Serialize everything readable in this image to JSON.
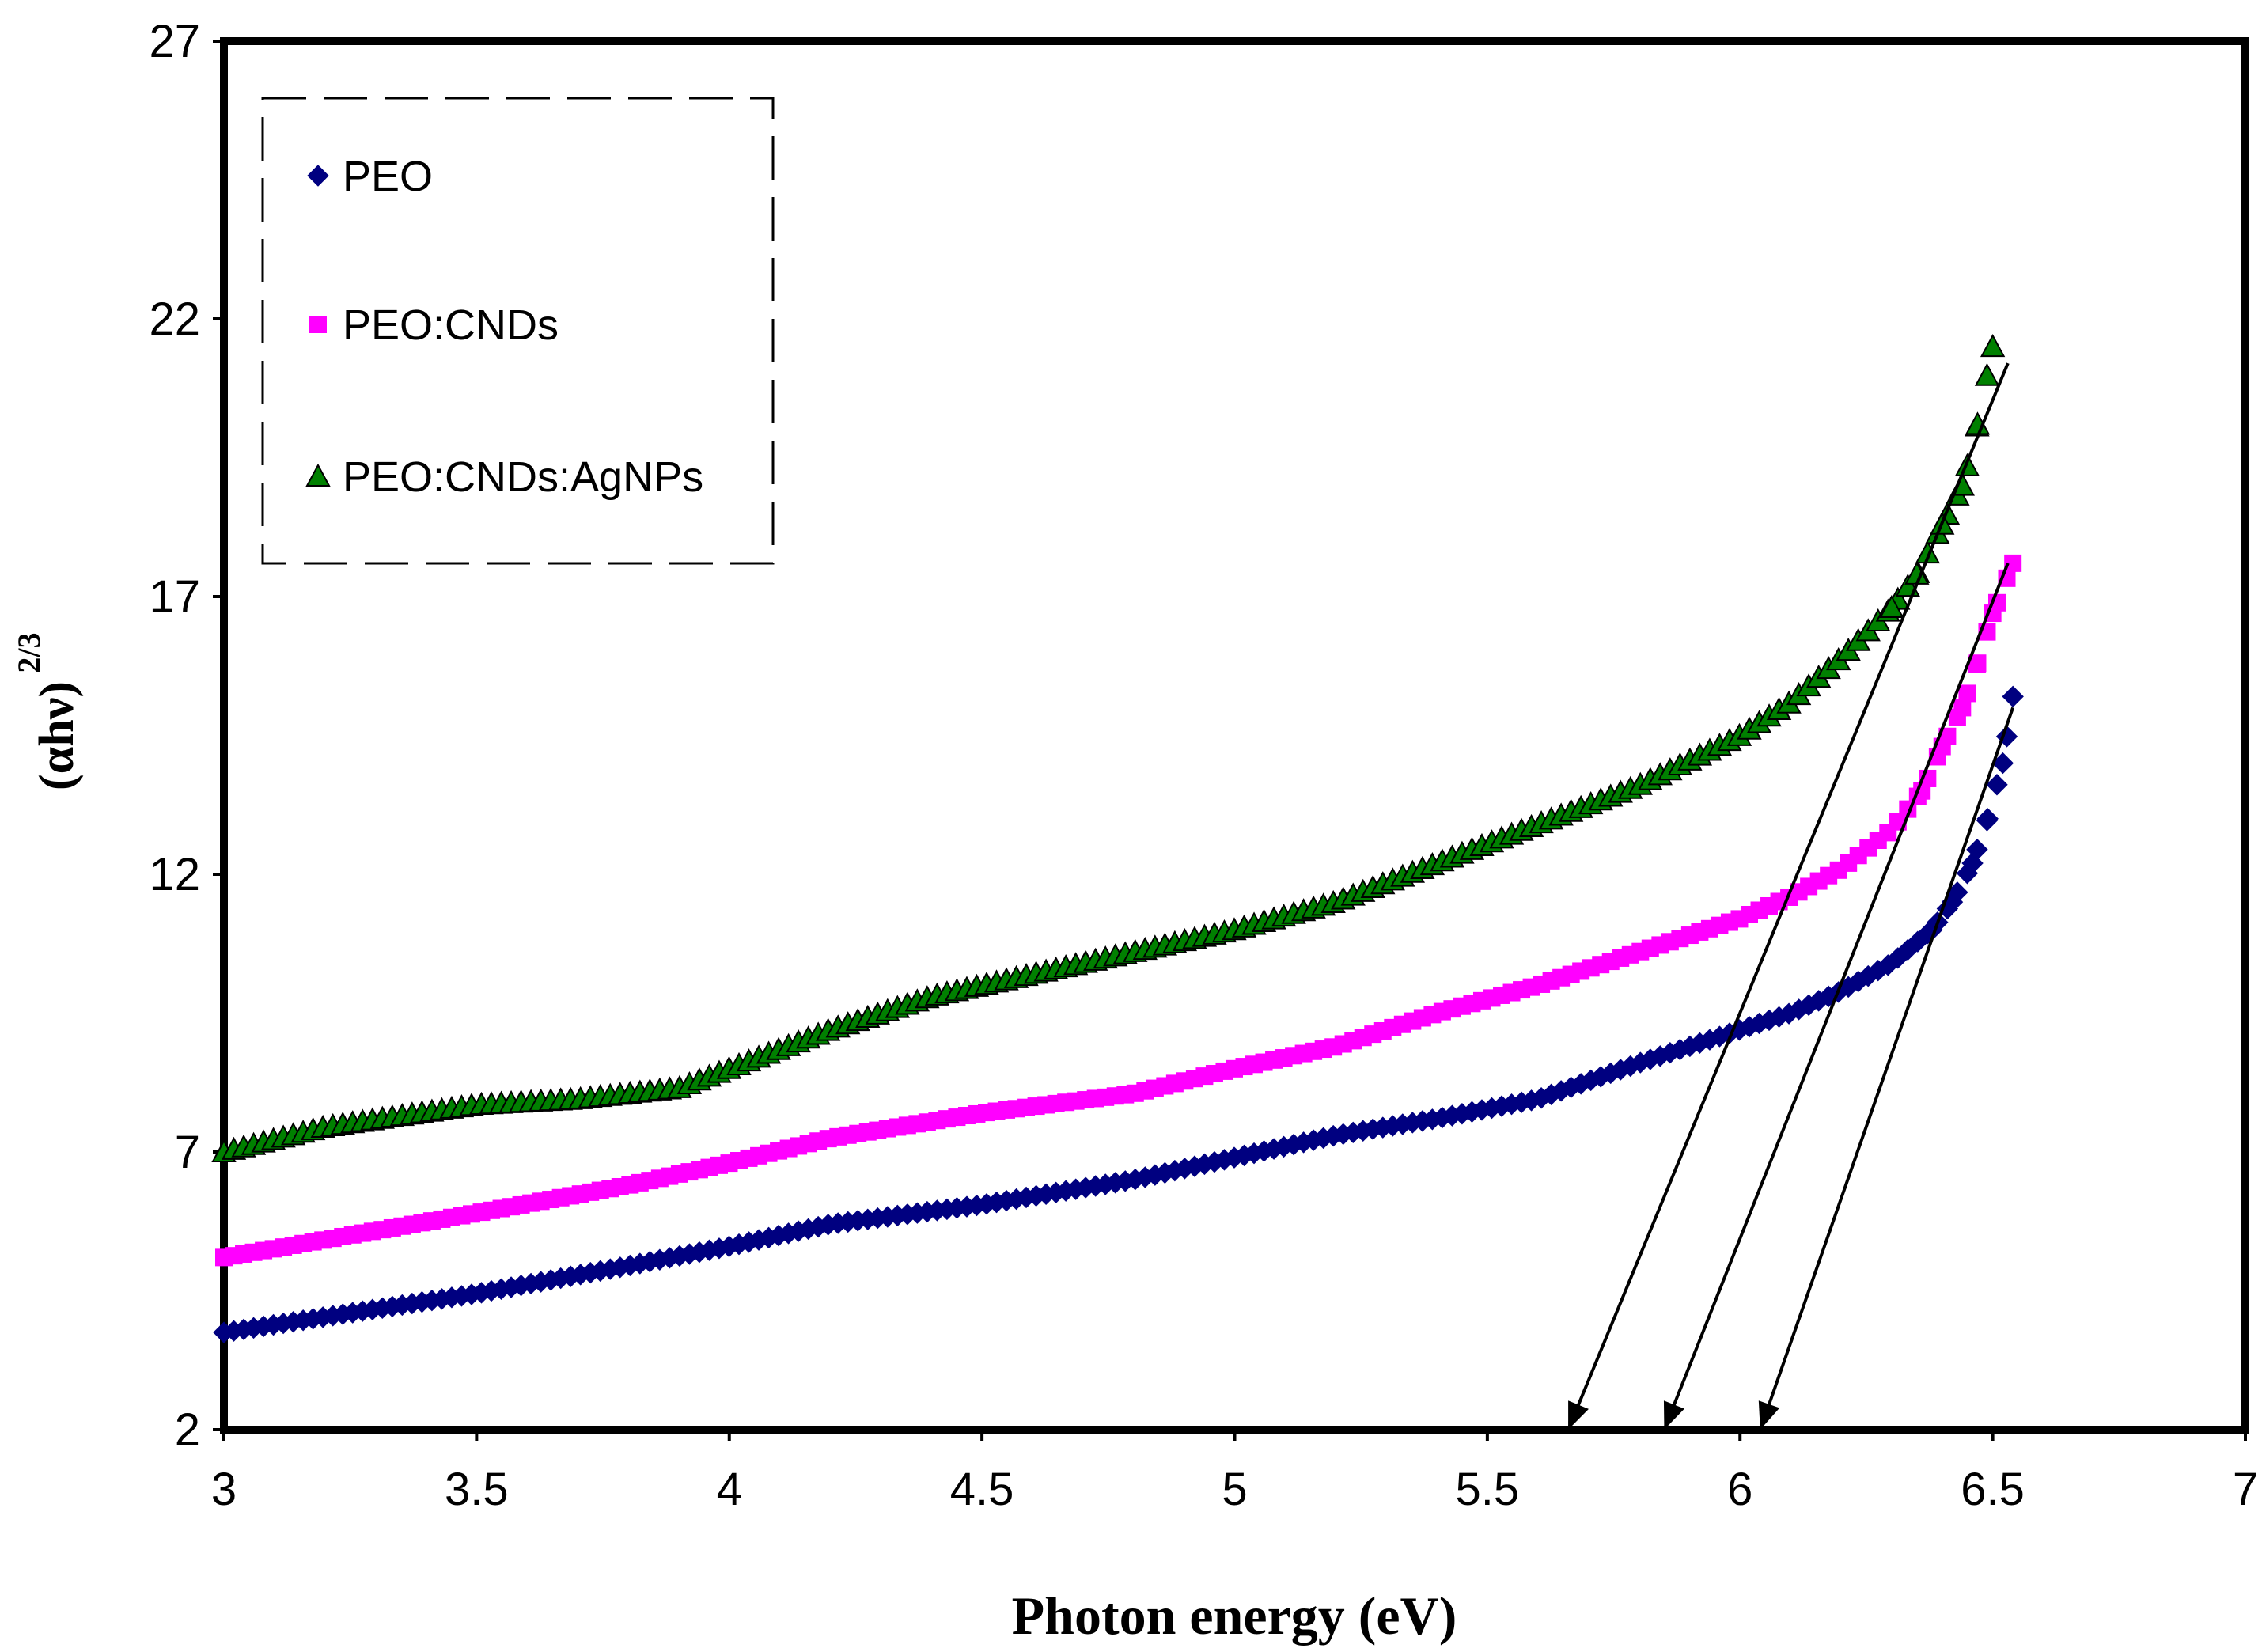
{
  "chart_data": {
    "type": "scatter",
    "title": "",
    "xlabel": "Photon energy (eV)",
    "ylabel_main": "(αhν)",
    "ylabel_exponent": "2/3",
    "xlim": [
      3,
      7
    ],
    "ylim": [
      2,
      27
    ],
    "x_ticks": [
      3,
      3.5,
      4,
      4.5,
      5,
      5.5,
      6,
      6.5,
      7
    ],
    "x_tick_labels": [
      "3",
      "3.5",
      "4",
      "4.5",
      "5",
      "5.5",
      "6",
      "6.5",
      "7"
    ],
    "y_ticks": [
      2,
      7,
      12,
      17,
      22,
      27
    ],
    "y_tick_labels": [
      "2",
      "7",
      "12",
      "17",
      "22",
      "27"
    ],
    "legend_position": "top-left",
    "series": [
      {
        "name": "PEO",
        "marker": "diamond",
        "color": "#000080",
        "x": [
          3.0,
          3.5,
          3.8,
          4.0,
          4.2,
          4.5,
          4.8,
          5.0,
          5.2,
          5.4,
          5.6,
          5.8,
          5.95,
          6.1,
          6.2,
          6.3,
          6.38,
          6.42,
          6.46,
          6.49,
          6.52,
          6.54
        ],
        "y": [
          3.75,
          4.45,
          4.95,
          5.3,
          5.7,
          6.05,
          6.5,
          6.9,
          7.3,
          7.6,
          7.95,
          8.6,
          9.05,
          9.5,
          9.9,
          10.4,
          11.0,
          11.5,
          12.2,
          13.0,
          14.0,
          15.2
        ]
      },
      {
        "name": "PEO:CNDs",
        "marker": "square",
        "color": "#ff00ff",
        "x": [
          3.0,
          3.5,
          3.8,
          4.0,
          4.2,
          4.5,
          4.8,
          5.0,
          5.2,
          5.4,
          5.6,
          5.8,
          6.0,
          6.1,
          6.2,
          6.3,
          6.36,
          6.4,
          6.44,
          6.47,
          6.5,
          6.54
        ],
        "y": [
          5.1,
          5.9,
          6.4,
          6.8,
          7.25,
          7.7,
          8.05,
          8.5,
          8.9,
          9.5,
          10.0,
          10.6,
          11.2,
          11.6,
          12.1,
          12.8,
          13.5,
          14.3,
          15.0,
          15.8,
          16.7,
          17.6
        ]
      },
      {
        "name": "PEO:CNDs:AgNPs",
        "marker": "triangle",
        "color": "#008000",
        "x": [
          3.0,
          3.2,
          3.5,
          3.7,
          3.9,
          4.0,
          4.2,
          4.4,
          4.6,
          4.8,
          5.0,
          5.2,
          5.4,
          5.6,
          5.8,
          6.0,
          6.1,
          6.2,
          6.3,
          6.35,
          6.4,
          6.44,
          6.47,
          6.5
        ],
        "y": [
          7.0,
          7.45,
          7.85,
          7.95,
          8.15,
          8.5,
          9.2,
          9.8,
          10.2,
          10.6,
          11.0,
          11.5,
          12.2,
          12.9,
          13.6,
          14.5,
          15.1,
          15.9,
          16.8,
          17.4,
          18.3,
          19.0,
          20.1,
          21.5
        ]
      }
    ],
    "extrapolation_arrows": [
      {
        "series": "PEO:CNDs:AgNPs",
        "from": [
          6.53,
          21.2
        ],
        "to": [
          5.66,
          2.0
        ]
      },
      {
        "series": "PEO:CNDs",
        "from": [
          6.53,
          17.6
        ],
        "to": [
          5.85,
          2.0
        ]
      },
      {
        "series": "PEO",
        "from": [
          6.54,
          15.0
        ],
        "to": [
          6.04,
          2.0
        ]
      }
    ]
  }
}
